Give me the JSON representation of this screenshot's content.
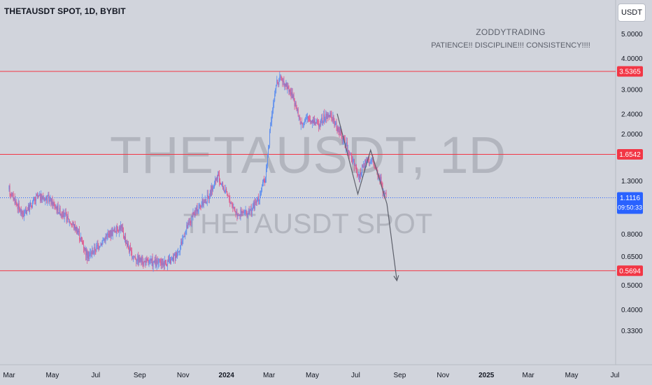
{
  "header": {
    "symbol_title": "THETAUSDT SPOT, 1D, BYBIT",
    "currency_button": "USDT"
  },
  "watermark": {
    "main": "THETAUSDT, 1D",
    "sub": "THETAUSDT SPOT"
  },
  "annotation": {
    "author": "ZODDYTRADING",
    "motto": "PATIENCE!! DISCIPLINE!!! CONSISTENCY!!!!"
  },
  "colors": {
    "background": "#d1d4dc",
    "candle_up": "#5b8def",
    "candle_down": "#e0558b",
    "horizontal_line": "#f23645",
    "last_price": "#2962ff",
    "projection": "#5d606b"
  },
  "chart_data": {
    "type": "candlestick",
    "log_scale": true,
    "ylim": [
      0.29,
      5.4
    ],
    "xlim": [
      "2023-03-01",
      "2025-07-01"
    ],
    "y_ticks": [
      "5.0000",
      "4.0000",
      "3.0000",
      "2.4000",
      "2.0000",
      "1.3000",
      "0.8000",
      "0.6500",
      "0.5000",
      "0.4000",
      "0.3300"
    ],
    "x_ticks": [
      {
        "label": "Mar",
        "date": "2023-03-01"
      },
      {
        "label": "May",
        "date": "2023-05-01"
      },
      {
        "label": "Jul",
        "date": "2023-07-01"
      },
      {
        "label": "Sep",
        "date": "2023-09-01"
      },
      {
        "label": "Nov",
        "date": "2023-11-01"
      },
      {
        "label": "2024",
        "date": "2024-01-01"
      },
      {
        "label": "Mar",
        "date": "2024-03-01"
      },
      {
        "label": "May",
        "date": "2024-05-01"
      },
      {
        "label": "Jul",
        "date": "2024-07-01"
      },
      {
        "label": "Sep",
        "date": "2024-09-01"
      },
      {
        "label": "Nov",
        "date": "2024-11-01"
      },
      {
        "label": "2025",
        "date": "2025-01-01"
      },
      {
        "label": "Mar",
        "date": "2025-03-01"
      },
      {
        "label": "May",
        "date": "2025-05-01"
      },
      {
        "label": "Jul",
        "date": "2025-07-01"
      }
    ],
    "horizontal_levels": [
      {
        "value": 3.5365,
        "label": "3.5365"
      },
      {
        "value": 1.6542,
        "label": "1.6542"
      },
      {
        "value": 0.5694,
        "label": "0.5694"
      }
    ],
    "last_price": {
      "value": 1.1116,
      "label": "1.1116",
      "countdown": "09:50:33"
    },
    "price_path": [
      {
        "date": "2023-03-01",
        "close": 1.2
      },
      {
        "date": "2023-03-20",
        "close": 0.95
      },
      {
        "date": "2023-04-10",
        "close": 1.12
      },
      {
        "date": "2023-04-25",
        "close": 1.1
      },
      {
        "date": "2023-05-15",
        "close": 0.96
      },
      {
        "date": "2023-06-05",
        "close": 0.83
      },
      {
        "date": "2023-06-20",
        "close": 0.65
      },
      {
        "date": "2023-07-05",
        "close": 0.72
      },
      {
        "date": "2023-07-20",
        "close": 0.8
      },
      {
        "date": "2023-08-05",
        "close": 0.85
      },
      {
        "date": "2023-08-20",
        "close": 0.66
      },
      {
        "date": "2023-09-05",
        "close": 0.62
      },
      {
        "date": "2023-09-25",
        "close": 0.61
      },
      {
        "date": "2023-10-15",
        "close": 0.62
      },
      {
        "date": "2023-10-25",
        "close": 0.68
      },
      {
        "date": "2023-11-05",
        "close": 0.83
      },
      {
        "date": "2023-11-20",
        "close": 1.0
      },
      {
        "date": "2023-12-05",
        "close": 1.1
      },
      {
        "date": "2023-12-20",
        "close": 1.35
      },
      {
        "date": "2024-01-01",
        "close": 1.15
      },
      {
        "date": "2024-01-15",
        "close": 0.97
      },
      {
        "date": "2024-02-01",
        "close": 0.96
      },
      {
        "date": "2024-02-15",
        "close": 1.1
      },
      {
        "date": "2024-02-25",
        "close": 1.35
      },
      {
        "date": "2024-03-05",
        "close": 2.4
      },
      {
        "date": "2024-03-12",
        "close": 3.2
      },
      {
        "date": "2024-03-20",
        "close": 3.3
      },
      {
        "date": "2024-04-01",
        "close": 2.9
      },
      {
        "date": "2024-04-15",
        "close": 2.2
      },
      {
        "date": "2024-04-25",
        "close": 2.3
      },
      {
        "date": "2024-05-10",
        "close": 2.2
      },
      {
        "date": "2024-05-25",
        "close": 2.4
      },
      {
        "date": "2024-06-10",
        "close": 2.0
      },
      {
        "date": "2024-06-25",
        "close": 1.6
      },
      {
        "date": "2024-07-05",
        "close": 1.35
      },
      {
        "date": "2024-07-15",
        "close": 1.55
      },
      {
        "date": "2024-07-25",
        "close": 1.55
      },
      {
        "date": "2024-08-05",
        "close": 1.3
      },
      {
        "date": "2024-08-13",
        "close": 1.1116
      }
    ],
    "projection_path": [
      {
        "date": "2024-06-05",
        "value": 2.4
      },
      {
        "date": "2024-07-04",
        "value": 1.15
      },
      {
        "date": "2024-07-22",
        "value": 1.72
      },
      {
        "date": "2024-08-14",
        "value": 1.05
      },
      {
        "date": "2024-08-28",
        "value": 0.52
      }
    ]
  }
}
